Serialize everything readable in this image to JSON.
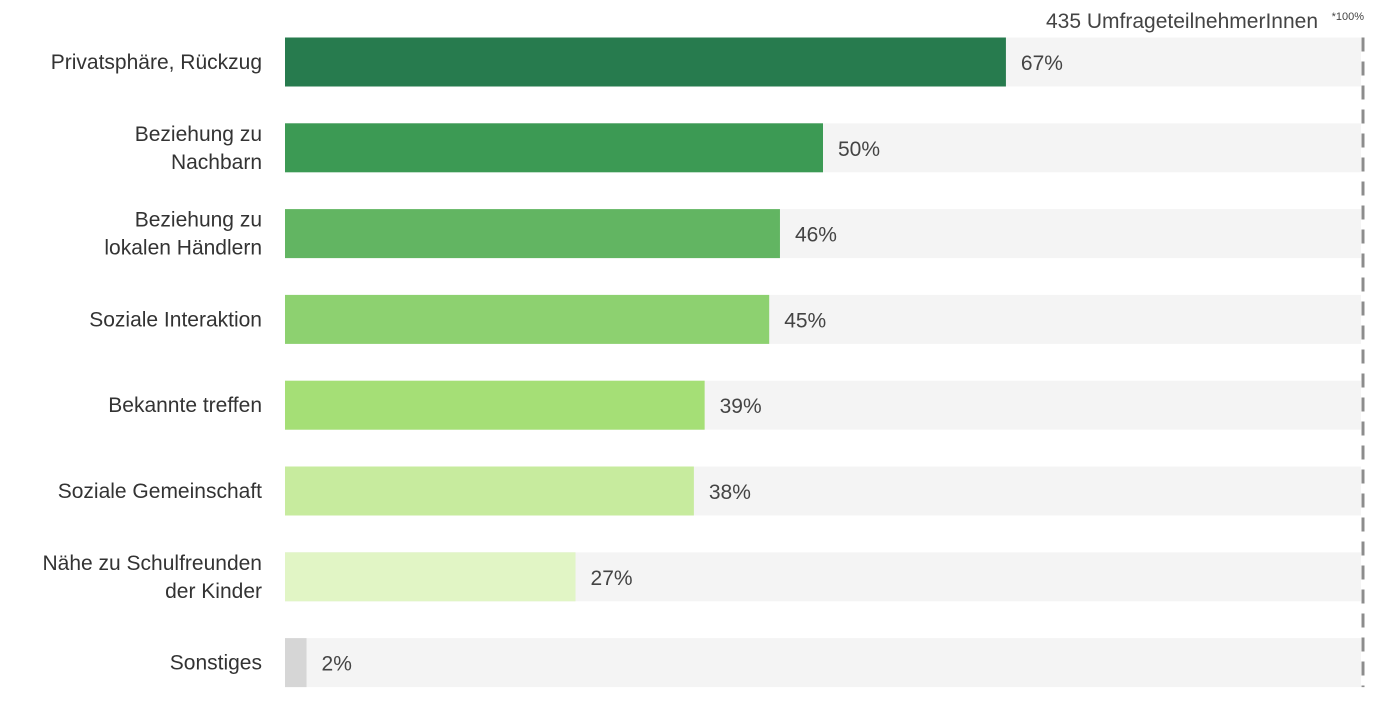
{
  "chart_data": {
    "type": "bar",
    "orientation": "horizontal",
    "note": "435 UmfrageteilnehmerInnen",
    "note_superscript": "*100%",
    "xlim": [
      0,
      100
    ],
    "categories": [
      [
        "Privatsphäre, Rückzug"
      ],
      [
        "Beziehung zu",
        "Nachbarn"
      ],
      [
        "Beziehung zu",
        "lokalen Händlern"
      ],
      [
        "Soziale Interaktion"
      ],
      [
        "Bekannte treffen"
      ],
      [
        "Soziale Gemeinschaft"
      ],
      [
        "Nähe zu Schulfreunden",
        "der Kinder"
      ],
      [
        "Sonstiges"
      ]
    ],
    "values": [
      67,
      50,
      46,
      45,
      39,
      38,
      27,
      2
    ],
    "value_labels": [
      "67%",
      "50%",
      "46%",
      "45%",
      "39%",
      "38%",
      "27%",
      "2%"
    ],
    "bar_colors": [
      "#277b4e",
      "#3c9a54",
      "#62b562",
      "#8dd170",
      "#a5df76",
      "#c7eb9e",
      "#e1f5c5",
      "#d6d6d6"
    ],
    "track_color": "#f4f4f4",
    "reference_line": "dashed vertical line at 100%",
    "grid": false,
    "legend": "none"
  }
}
